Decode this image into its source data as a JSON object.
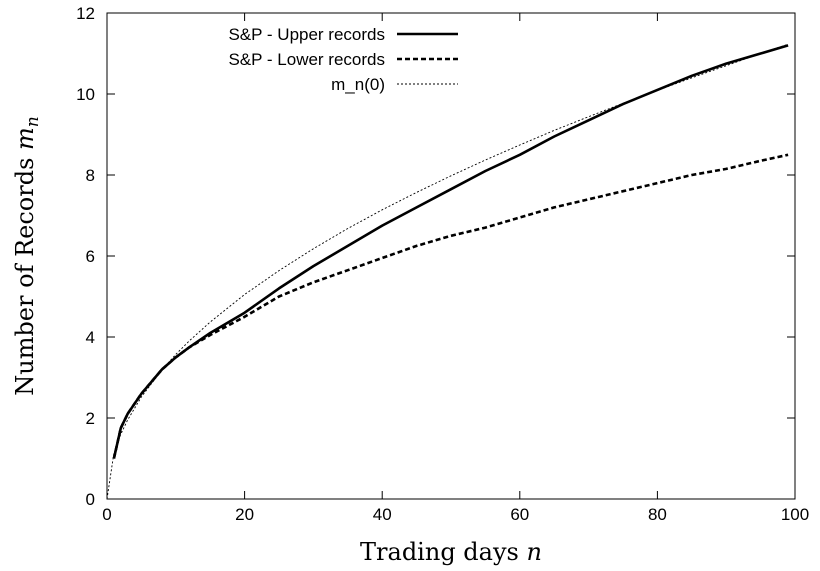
{
  "chart_data": {
    "type": "line",
    "xlabel": "Trading days",
    "xlabel_var": "n",
    "ylabel": "Number of Records",
    "ylabel_var": "m",
    "ylabel_sub": "n",
    "xlim": [
      0,
      100
    ],
    "ylim": [
      0,
      12
    ],
    "xticks": [
      "0",
      "20",
      "40",
      "60",
      "80",
      "100"
    ],
    "yticks": [
      "0",
      "2",
      "4",
      "6",
      "8",
      "10",
      "12"
    ],
    "grid": false,
    "legend_position": "top-right",
    "series": [
      {
        "name": "S&P - Upper records",
        "style": "solid",
        "x": [
          1,
          2,
          3,
          5,
          8,
          10,
          12,
          15,
          20,
          25,
          30,
          35,
          40,
          45,
          50,
          55,
          60,
          65,
          70,
          75,
          80,
          85,
          90,
          95,
          99
        ],
        "y": [
          1.0,
          1.75,
          2.1,
          2.6,
          3.2,
          3.5,
          3.75,
          4.1,
          4.6,
          5.2,
          5.75,
          6.25,
          6.75,
          7.2,
          7.65,
          8.1,
          8.5,
          8.95,
          9.35,
          9.75,
          10.1,
          10.45,
          10.75,
          11.0,
          11.2
        ]
      },
      {
        "name": "S&P - Lower records",
        "style": "dashed",
        "x": [
          1,
          2,
          3,
          5,
          8,
          10,
          12,
          15,
          20,
          25,
          30,
          35,
          40,
          45,
          50,
          55,
          60,
          65,
          70,
          75,
          80,
          85,
          90,
          95,
          99
        ],
        "y": [
          1.0,
          1.75,
          2.1,
          2.6,
          3.2,
          3.5,
          3.75,
          4.05,
          4.5,
          5.0,
          5.35,
          5.65,
          5.95,
          6.25,
          6.5,
          6.7,
          6.95,
          7.2,
          7.4,
          7.6,
          7.8,
          8.0,
          8.15,
          8.35,
          8.5
        ]
      },
      {
        "name": "m_n(0)",
        "style": "dotted",
        "formula": "sqrt(4n/pi)",
        "x": [
          0,
          1,
          2,
          3,
          5,
          8,
          10,
          12,
          15,
          20,
          25,
          30,
          35,
          40,
          45,
          50,
          55,
          60,
          65,
          70,
          75,
          80,
          85,
          90,
          95,
          99
        ],
        "y": [
          0.0,
          1.13,
          1.6,
          1.95,
          2.52,
          3.19,
          3.57,
          3.91,
          4.37,
          5.05,
          5.64,
          6.18,
          6.68,
          7.14,
          7.57,
          7.98,
          8.37,
          8.74,
          9.1,
          9.44,
          9.77,
          10.09,
          10.4,
          10.7,
          11.0,
          11.23
        ]
      }
    ]
  }
}
